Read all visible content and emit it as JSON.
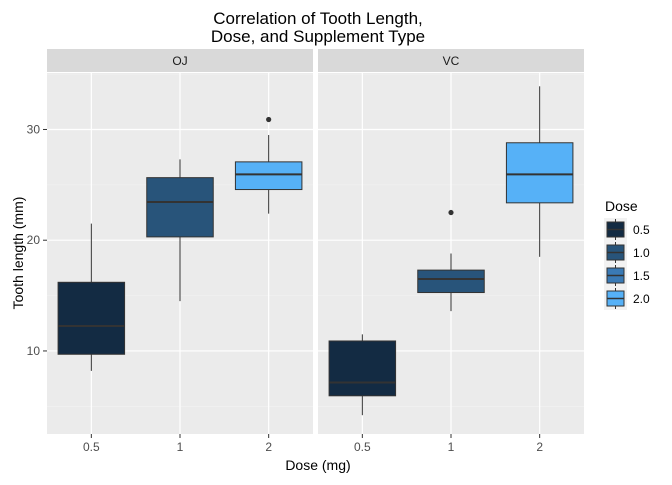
{
  "chart_data": {
    "type": "box",
    "title": [
      "Correlation of Tooth Length,",
      "Dose, and Supplement Type"
    ],
    "xlabel": "Dose (mg)",
    "ylabel": "Tooth length (mm)",
    "ylim": [
      2.5,
      35.1
    ],
    "y_ticks": [
      10,
      20,
      30
    ],
    "categories": [
      "0.5",
      "1",
      "2"
    ],
    "grid": true,
    "legend": {
      "title": "Dose",
      "placement": "right",
      "entries": [
        {
          "label": "0.5",
          "color": "#132B43"
        },
        {
          "label": "1.0",
          "color": "#28547A"
        },
        {
          "label": "1.5",
          "color": "#3A7AB5"
        },
        {
          "label": "2.0",
          "color": "#56B1F7"
        }
      ]
    },
    "panels": [
      {
        "name": "OJ",
        "boxes": [
          {
            "category": "0.5",
            "fill": "#132B43",
            "min": 8.2,
            "q1": 9.7,
            "median": 12.25,
            "q3": 16.2,
            "max": 21.5,
            "outliers": []
          },
          {
            "category": "1",
            "fill": "#28547A",
            "min": 14.5,
            "q1": 20.3,
            "median": 23.45,
            "q3": 25.65,
            "max": 27.3,
            "outliers": []
          },
          {
            "category": "2",
            "fill": "#56B1F7",
            "min": 22.4,
            "q1": 24.575,
            "median": 25.95,
            "q3": 27.075,
            "max": 29.5,
            "outliers": [
              30.9
            ]
          }
        ]
      },
      {
        "name": "VC",
        "boxes": [
          {
            "category": "0.5",
            "fill": "#132B43",
            "min": 4.2,
            "q1": 5.95,
            "median": 7.15,
            "q3": 10.9,
            "max": 11.5,
            "outliers": []
          },
          {
            "category": "1",
            "fill": "#28547A",
            "min": 13.6,
            "q1": 15.275,
            "median": 16.5,
            "q3": 17.3,
            "max": 18.8,
            "outliers": [
              22.5
            ]
          },
          {
            "category": "2",
            "fill": "#56B1F7",
            "min": 18.5,
            "q1": 23.375,
            "median": 25.95,
            "q3": 28.8,
            "max": 33.9,
            "outliers": []
          }
        ]
      }
    ]
  }
}
